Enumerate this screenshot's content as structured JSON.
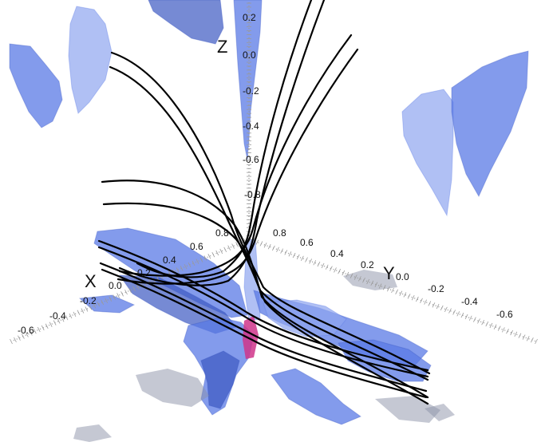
{
  "figure": {
    "colors": {
      "surface": "#5a79e6",
      "surface_dark": "#3c58c2",
      "surface_light": "#8fa5f0",
      "shadow": "#8c92a8",
      "field_line": "#000000",
      "axis": "#9a9a9a",
      "core": "#d0358a"
    },
    "axes": {
      "x": {
        "label": "X",
        "ticks": [
          "0.8",
          "0.6",
          "0.4",
          "0.2",
          "0.0",
          "-0.2",
          "-0.4",
          "-0.6"
        ]
      },
      "y": {
        "label": "Y",
        "ticks": [
          "0.8",
          "0.6",
          "0.4",
          "0.2",
          "0.0",
          "-0.2",
          "-0.4",
          "-0.6"
        ]
      },
      "z": {
        "label": "Z",
        "ticks": [
          "0.2",
          "0.0",
          "-0.2",
          "-0.4",
          "-0.6",
          "-0.8"
        ]
      }
    }
  }
}
